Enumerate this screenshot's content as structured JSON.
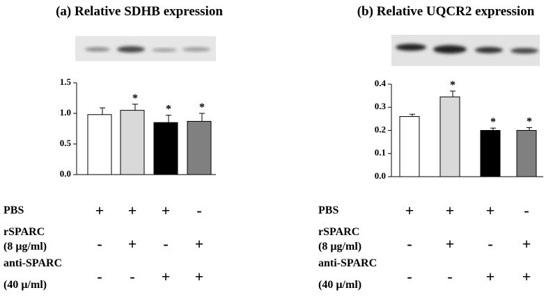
{
  "chart_data": [
    {
      "type": "bar",
      "title": "(a) Relative SDHB expression",
      "values": [
        0.98,
        1.05,
        0.85,
        0.87
      ],
      "errors": [
        0.11,
        0.1,
        0.12,
        0.13
      ],
      "colors": [
        "#ffffff",
        "#d9d9d9",
        "#000000",
        "#808080"
      ],
      "annotations": [
        null,
        "*",
        "*",
        "*"
      ],
      "ylim": [
        0,
        1.5
      ],
      "yticks": [
        {
          "value": 0,
          "label": "0.0"
        },
        0.5,
        {
          "value": 1,
          "label": "1.0"
        },
        1.5
      ],
      "treatments": [
        {
          "label": [
            "PBS"
          ],
          "signs": [
            "+",
            "+",
            "+",
            "-"
          ]
        },
        {
          "label": [
            "rSPARC",
            "(8 µg/ml)"
          ],
          "signs": [
            "-",
            "+",
            "-",
            "+"
          ]
        },
        {
          "label": [
            "anti-SPARC",
            "(40 µ/ml)"
          ],
          "signs": [
            "-",
            "-",
            "+",
            "+"
          ]
        }
      ]
    },
    {
      "type": "bar",
      "title": "(b) Relative UQCR2 expression",
      "values": [
        0.26,
        0.345,
        0.2,
        0.2
      ],
      "errors": [
        0.01,
        0.025,
        0.01,
        0.012
      ],
      "colors": [
        "#ffffff",
        "#d9d9d9",
        "#000000",
        "#808080"
      ],
      "annotations": [
        null,
        "*",
        "*",
        "*"
      ],
      "ylim": [
        0,
        0.4
      ],
      "yticks": [
        {
          "value": 0,
          "label": "0.0"
        },
        0.1,
        0.2,
        0.3,
        0.4
      ],
      "treatments": [
        {
          "label": [
            "PBS"
          ],
          "signs": [
            "+",
            "+",
            "+",
            "-"
          ]
        },
        {
          "label": [
            "rSPARC",
            "(8 µg/ml)"
          ],
          "signs": [
            "-",
            "+",
            "-",
            "+"
          ]
        },
        {
          "label": [
            "anti-SPARC",
            "(40 µ/ml)"
          ],
          "signs": [
            "-",
            "-",
            "+",
            "+"
          ]
        }
      ]
    }
  ]
}
